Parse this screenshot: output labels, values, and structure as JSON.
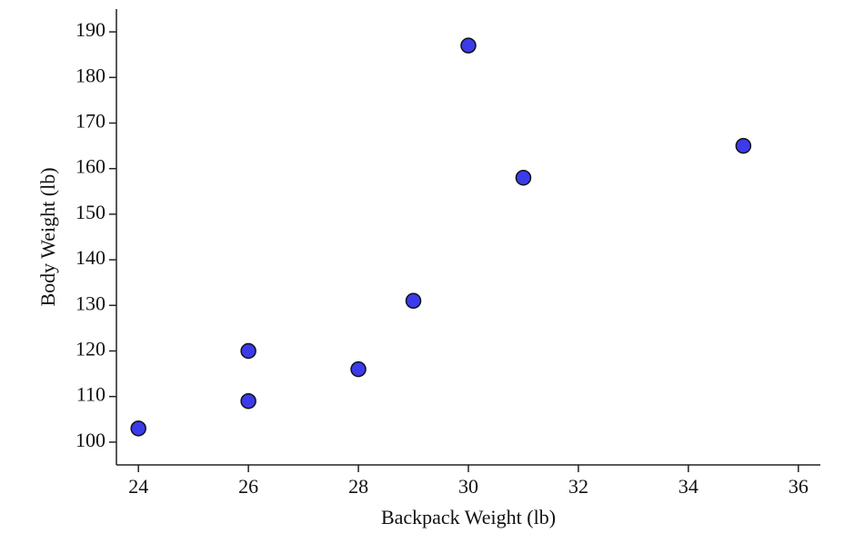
{
  "chart_data": {
    "type": "scatter",
    "x_label": "Backpack Weight (lb)",
    "y_label": "Body Weight (lb)",
    "series": [
      {
        "name": null,
        "color": "#3b3bea",
        "x": [
          24,
          26,
          26,
          28,
          29,
          30,
          31,
          35
        ],
        "values": [
          103,
          120,
          109,
          116,
          131,
          187,
          158,
          165
        ]
      }
    ],
    "xlim": [
      23.6,
      36.4
    ],
    "xticks": [
      24,
      26,
      28,
      30,
      32,
      34,
      36
    ],
    "ylim": [
      95,
      195
    ],
    "yticks": [
      100,
      110,
      120,
      130,
      140,
      150,
      160,
      170,
      180,
      190
    ],
    "grid": false
  }
}
